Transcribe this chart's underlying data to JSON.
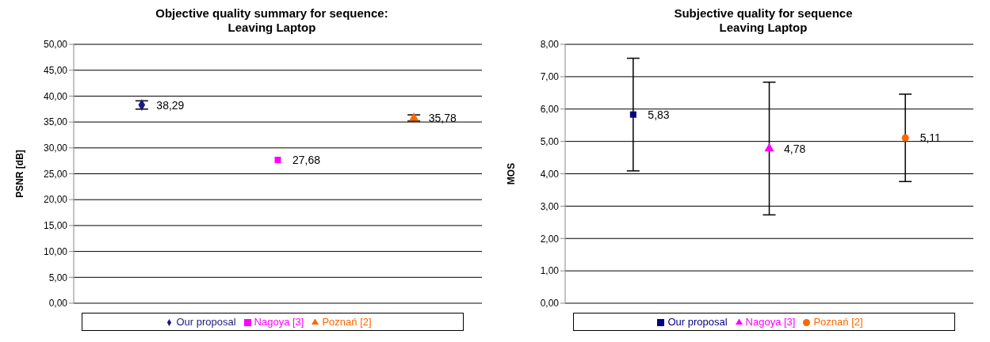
{
  "chart_data": [
    {
      "type": "scatter",
      "title": "Objective quality summary for sequence:\nLeaving Laptop",
      "ylabel": "PSNR [dB]",
      "categories": [
        null,
        null,
        null
      ],
      "ylim": [
        0,
        50
      ],
      "yticks": [
        {
          "value": 0,
          "label": "0,00"
        },
        {
          "value": 5,
          "label": "5,00"
        },
        {
          "value": 10,
          "label": "10,00"
        },
        {
          "value": 15,
          "label": "15,00"
        },
        {
          "value": 20,
          "label": "20,00"
        },
        {
          "value": 25,
          "label": "25,00"
        },
        {
          "value": 30,
          "label": "30,00"
        },
        {
          "value": 35,
          "label": "35,00"
        },
        {
          "value": 40,
          "label": "40,00"
        },
        {
          "value": 45,
          "label": "45,00"
        },
        {
          "value": 50,
          "label": "50,00"
        }
      ],
      "grid": "y",
      "legend": "bottom",
      "series": [
        {
          "name": "Our proposal",
          "color": "#1a1a80",
          "marker": "diamond",
          "values": [
            38.29,
            null,
            null
          ],
          "value_labels": [
            "38,29",
            null,
            null
          ],
          "errors": [
            0.8,
            null,
            null
          ]
        },
        {
          "name": "Nagoya [3]",
          "color": "#ff00ff",
          "marker": "square",
          "values": [
            null,
            27.68,
            null
          ],
          "value_labels": [
            null,
            "27,68",
            null
          ]
        },
        {
          "name": "Poznań [2]",
          "color": "#ff6600",
          "marker": "triangle",
          "values": [
            null,
            null,
            35.78
          ],
          "value_labels": [
            null,
            null,
            "35,78"
          ],
          "errors": [
            null,
            null,
            0.6
          ]
        }
      ]
    },
    {
      "type": "scatter",
      "title": "Subjective quality for sequence\nLeaving Laptop",
      "ylabel": "MOS",
      "categories": [
        null,
        null,
        null
      ],
      "ylim": [
        0,
        8
      ],
      "yticks": [
        {
          "value": 0,
          "label": "0,00"
        },
        {
          "value": 1,
          "label": "1,00"
        },
        {
          "value": 2,
          "label": "2,00"
        },
        {
          "value": 3,
          "label": "3,00"
        },
        {
          "value": 4,
          "label": "4,00"
        },
        {
          "value": 5,
          "label": "5,00"
        },
        {
          "value": 6,
          "label": "6,00"
        },
        {
          "value": 7,
          "label": "7,00"
        },
        {
          "value": 8,
          "label": "8,00"
        }
      ],
      "grid": "y",
      "legend": "bottom",
      "series": [
        {
          "name": "Our proposal",
          "color": "#000080",
          "marker": "square",
          "values": [
            5.83,
            null,
            null
          ],
          "value_labels": [
            "5,83",
            null,
            null
          ],
          "errors": [
            1.74,
            null,
            null
          ]
        },
        {
          "name": "Nagoya [3]",
          "color": "#ff00ff",
          "marker": "triangle",
          "values": [
            null,
            4.78,
            null
          ],
          "value_labels": [
            null,
            "4,78",
            null
          ],
          "errors": [
            null,
            2.05,
            null
          ]
        },
        {
          "name": "Poznań [2]",
          "color": "#ff6600",
          "marker": "circle",
          "values": [
            null,
            null,
            5.11
          ],
          "value_labels": [
            null,
            null,
            "5,11"
          ],
          "errors": [
            null,
            null,
            1.35
          ]
        }
      ]
    }
  ]
}
